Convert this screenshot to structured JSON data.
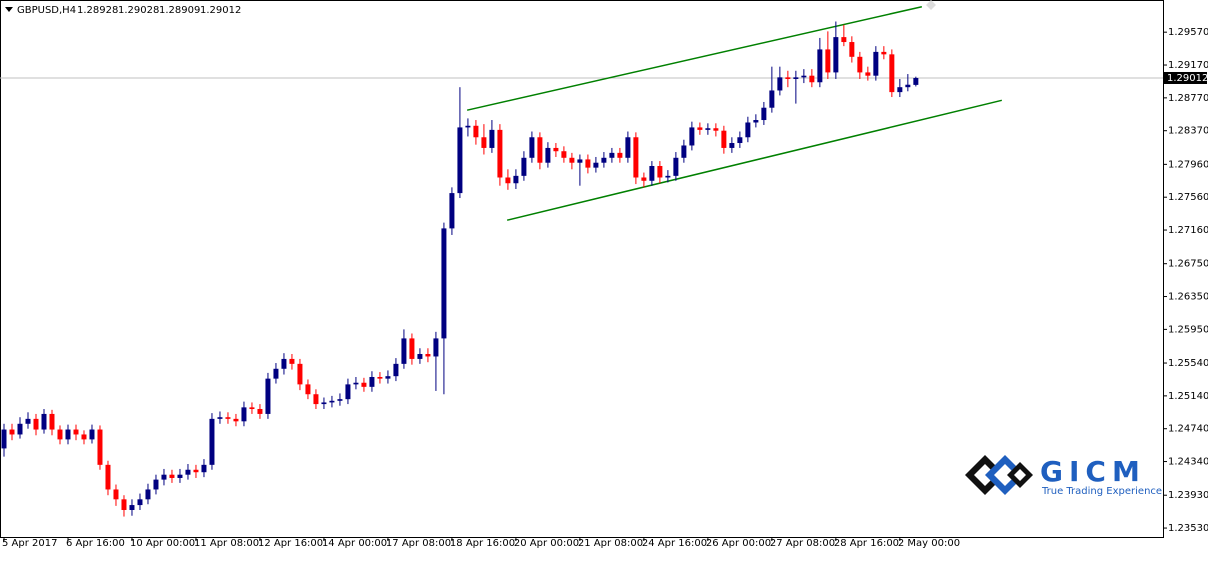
{
  "chart_data": {
    "type": "candlestick",
    "title": "GBPUSD,H4",
    "up_color": "#000080",
    "down_color": "#ff0000",
    "line_color": "#008000",
    "xlim": [
      -0.5,
      144.9
    ],
    "ylim": [
      1.23421,
      1.29962
    ],
    "yticks": [
      {
        "value": 1.2957,
        "label": "1.29570"
      },
      {
        "value": 1.2917,
        "label": "1.29170"
      },
      {
        "value": 1.2877,
        "label": "1.28770"
      },
      {
        "value": 1.2837,
        "label": "1.28370"
      },
      {
        "value": 1.2796,
        "label": "1.27960"
      },
      {
        "value": 1.2756,
        "label": "1.27560"
      },
      {
        "value": 1.2716,
        "label": "1.27160"
      },
      {
        "value": 1.2675,
        "label": "1.26750"
      },
      {
        "value": 1.2635,
        "label": "1.26350"
      },
      {
        "value": 1.2595,
        "label": "1.25950"
      },
      {
        "value": 1.2554,
        "label": "1.25540"
      },
      {
        "value": 1.2514,
        "label": "1.25140"
      },
      {
        "value": 1.2474,
        "label": "1.24740"
      },
      {
        "value": 1.2434,
        "label": "1.24340"
      },
      {
        "value": 1.2393,
        "label": "1.23930"
      },
      {
        "value": 1.2353,
        "label": "1.23530"
      }
    ],
    "xticks": [
      {
        "value": 0,
        "label": "5 Apr 2017"
      },
      {
        "value": 8,
        "label": "6 Apr 16:00"
      },
      {
        "value": 16,
        "label": "10 Apr 00:00"
      },
      {
        "value": 24,
        "label": "11 Apr 08:00"
      },
      {
        "value": 32,
        "label": "12 Apr 16:00"
      },
      {
        "value": 40,
        "label": "14 Apr 00:00"
      },
      {
        "value": 48,
        "label": "17 Apr 08:00"
      },
      {
        "value": 56,
        "label": "18 Apr 16:00"
      },
      {
        "value": 64,
        "label": "20 Apr 00:00"
      },
      {
        "value": 72,
        "label": "21 Apr 08:00"
      },
      {
        "value": 80,
        "label": "24 Apr 16:00"
      },
      {
        "value": 88,
        "label": "26 Apr 00:00"
      },
      {
        "value": 96,
        "label": "27 Apr 08:00"
      },
      {
        "value": 104,
        "label": "28 Apr 16:00"
      },
      {
        "value": 112,
        "label": "2 May 00:00"
      }
    ],
    "channel_lines": [
      {
        "x": [
          57.9,
          114.75
        ],
        "y": [
          1.2862,
          1.2988
        ]
      },
      {
        "x": [
          62.9,
          124.75
        ],
        "y": [
          1.2728,
          1.2874
        ]
      }
    ],
    "ohlc": [
      [
        1.245,
        1.248,
        1.244,
        1.2473
      ],
      [
        1.2473,
        1.248,
        1.246,
        1.2467
      ],
      [
        1.2467,
        1.2488,
        1.2462,
        1.248
      ],
      [
        1.248,
        1.2494,
        1.2474,
        1.2486
      ],
      [
        1.2486,
        1.2492,
        1.2466,
        1.2473
      ],
      [
        1.2473,
        1.2498,
        1.2468,
        1.2492
      ],
      [
        1.2492,
        1.2497,
        1.2466,
        1.2473
      ],
      [
        1.2473,
        1.2478,
        1.2455,
        1.2461
      ],
      [
        1.2461,
        1.2479,
        1.2455,
        1.2473
      ],
      [
        1.2473,
        1.2479,
        1.246,
        1.2467
      ],
      [
        1.2467,
        1.2472,
        1.2455,
        1.2461
      ],
      [
        1.2461,
        1.2479,
        1.2456,
        1.2473
      ],
      [
        1.2473,
        1.2478,
        1.2424,
        1.243
      ],
      [
        1.243,
        1.2435,
        1.2393,
        1.24
      ],
      [
        1.24,
        1.2406,
        1.238,
        1.2388
      ],
      [
        1.2388,
        1.2393,
        1.2367,
        1.2375
      ],
      [
        1.2375,
        1.2388,
        1.2368,
        1.2381
      ],
      [
        1.2381,
        1.2395,
        1.2375,
        1.2388
      ],
      [
        1.2388,
        1.2407,
        1.2382,
        1.24
      ],
      [
        1.24,
        1.2418,
        1.2394,
        1.2412
      ],
      [
        1.2412,
        1.2425,
        1.2405,
        1.2418
      ],
      [
        1.2418,
        1.2424,
        1.2408,
        1.2414
      ],
      [
        1.2414,
        1.2425,
        1.2408,
        1.2418
      ],
      [
        1.2418,
        1.2431,
        1.2412,
        1.2424
      ],
      [
        1.2424,
        1.243,
        1.2414,
        1.2421
      ],
      [
        1.2421,
        1.2437,
        1.2415,
        1.243
      ],
      [
        1.243,
        1.2493,
        1.2424,
        1.2486
      ],
      [
        1.2486,
        1.2495,
        1.248,
        1.2488
      ],
      [
        1.2488,
        1.2494,
        1.248,
        1.2486
      ],
      [
        1.2486,
        1.2492,
        1.2477,
        1.2483
      ],
      [
        1.2483,
        1.2507,
        1.2477,
        1.25
      ],
      [
        1.25,
        1.2506,
        1.2492,
        1.2498
      ],
      [
        1.2498,
        1.2504,
        1.2486,
        1.2492
      ],
      [
        1.2492,
        1.2542,
        1.2486,
        1.2535
      ],
      [
        1.2535,
        1.2554,
        1.2529,
        1.2547
      ],
      [
        1.2547,
        1.2566,
        1.254,
        1.2559
      ],
      [
        1.2559,
        1.2565,
        1.2546,
        1.2553
      ],
      [
        1.2553,
        1.2559,
        1.2521,
        1.2528
      ],
      [
        1.2528,
        1.2534,
        1.251,
        1.2516
      ],
      [
        1.2516,
        1.2522,
        1.2498,
        1.2504
      ],
      [
        1.2504,
        1.2512,
        1.2498,
        1.2506
      ],
      [
        1.2506,
        1.2514,
        1.25,
        1.2508
      ],
      [
        1.2508,
        1.2517,
        1.2502,
        1.251
      ],
      [
        1.251,
        1.2535,
        1.2504,
        1.2528
      ],
      [
        1.2528,
        1.2537,
        1.2522,
        1.253
      ],
      [
        1.253,
        1.2536,
        1.2519,
        1.2525
      ],
      [
        1.2525,
        1.2544,
        1.2519,
        1.2537
      ],
      [
        1.2537,
        1.2543,
        1.2529,
        1.2535
      ],
      [
        1.2535,
        1.2545,
        1.2529,
        1.2538
      ],
      [
        1.2538,
        1.256,
        1.2532,
        1.2553
      ],
      [
        1.2553,
        1.2595,
        1.2547,
        1.2584
      ],
      [
        1.2584,
        1.259,
        1.2552,
        1.2559
      ],
      [
        1.2559,
        1.2572,
        1.2553,
        1.2565
      ],
      [
        1.2565,
        1.2572,
        1.2555,
        1.2562
      ],
      [
        1.2562,
        1.2592,
        1.252,
        1.2584
      ],
      [
        1.2584,
        1.2725,
        1.2516,
        1.2718
      ],
      [
        1.2718,
        1.2768,
        1.271,
        1.2761
      ],
      [
        1.2761,
        1.289,
        1.2755,
        1.2841
      ],
      [
        1.2841,
        1.2852,
        1.283,
        1.2843
      ],
      [
        1.2843,
        1.285,
        1.282,
        1.2829
      ],
      [
        1.2829,
        1.2845,
        1.2808,
        1.2816
      ],
      [
        1.2816,
        1.285,
        1.281,
        1.2838
      ],
      [
        1.2838,
        1.2845,
        1.277,
        1.278
      ],
      [
        1.278,
        1.279,
        1.2765,
        1.2773
      ],
      [
        1.2773,
        1.279,
        1.2766,
        1.2782
      ],
      [
        1.2782,
        1.2812,
        1.2776,
        1.2804
      ],
      [
        1.2804,
        1.2836,
        1.2798,
        1.2829
      ],
      [
        1.2829,
        1.2835,
        1.279,
        1.2798
      ],
      [
        1.2798,
        1.2823,
        1.2792,
        1.2816
      ],
      [
        1.2816,
        1.2822,
        1.2805,
        1.2812
      ],
      [
        1.2812,
        1.2818,
        1.2798,
        1.2804
      ],
      [
        1.2804,
        1.281,
        1.279,
        1.2798
      ],
      [
        1.2798,
        1.2808,
        1.277,
        1.2802
      ],
      [
        1.2802,
        1.2808,
        1.2785,
        1.2792
      ],
      [
        1.2792,
        1.2805,
        1.2786,
        1.2798
      ],
      [
        1.2798,
        1.2811,
        1.2792,
        1.2804
      ],
      [
        1.2804,
        1.2816,
        1.2798,
        1.281
      ],
      [
        1.281,
        1.2816,
        1.2798,
        1.2804
      ],
      [
        1.2804,
        1.2836,
        1.2798,
        1.2829
      ],
      [
        1.2829,
        1.2835,
        1.2772,
        1.278
      ],
      [
        1.278,
        1.2786,
        1.2768,
        1.2776
      ],
      [
        1.2776,
        1.28,
        1.277,
        1.2794
      ],
      [
        1.2794,
        1.28,
        1.2773,
        1.278
      ],
      [
        1.278,
        1.2789,
        1.2774,
        1.2782
      ],
      [
        1.2782,
        1.2811,
        1.2776,
        1.2804
      ],
      [
        1.2804,
        1.2826,
        1.2798,
        1.2819
      ],
      [
        1.2819,
        1.2848,
        1.2813,
        1.2841
      ],
      [
        1.2841,
        1.2847,
        1.2832,
        1.2838
      ],
      [
        1.2838,
        1.2846,
        1.2832,
        1.284
      ],
      [
        1.284,
        1.2846,
        1.283,
        1.2837
      ],
      [
        1.2837,
        1.2843,
        1.2809,
        1.2816
      ],
      [
        1.2816,
        1.2829,
        1.281,
        1.2822
      ],
      [
        1.2822,
        1.2836,
        1.2816,
        1.2829
      ],
      [
        1.2829,
        1.2854,
        1.2823,
        1.2847
      ],
      [
        1.2847,
        1.2857,
        1.2841,
        1.285
      ],
      [
        1.285,
        1.2872,
        1.2844,
        1.2865
      ],
      [
        1.2865,
        1.2915,
        1.2859,
        1.2886
      ],
      [
        1.2886,
        1.2915,
        1.288,
        1.2902
      ],
      [
        1.2902,
        1.291,
        1.289,
        1.29
      ],
      [
        1.29,
        1.291,
        1.287,
        1.2902
      ],
      [
        1.2902,
        1.2912,
        1.2895,
        1.2904
      ],
      [
        1.2904,
        1.2912,
        1.289,
        1.2896
      ],
      [
        1.2896,
        1.295,
        1.289,
        1.2936
      ],
      [
        1.2936,
        1.2958,
        1.29,
        1.2908
      ],
      [
        1.2908,
        1.297,
        1.29,
        1.2951
      ],
      [
        1.2951,
        1.2966,
        1.294,
        1.2945
      ],
      [
        1.2945,
        1.2952,
        1.292,
        1.2927
      ],
      [
        1.2927,
        1.2933,
        1.29,
        1.2908
      ],
      [
        1.2908,
        1.2915,
        1.2898,
        1.2904
      ],
      [
        1.2904,
        1.294,
        1.2898,
        1.2933
      ],
      [
        1.2933,
        1.294,
        1.2924,
        1.293
      ],
      [
        1.293,
        1.2936,
        1.2878,
        1.2884
      ],
      [
        1.2884,
        1.29,
        1.2878,
        1.289
      ],
      [
        1.289,
        1.2906,
        1.2885,
        1.2893
      ],
      [
        1.28928,
        1.29028,
        1.28909,
        1.29012
      ]
    ]
  },
  "logo": {
    "name": "GICM",
    "tagline": "True Trading Experience"
  }
}
